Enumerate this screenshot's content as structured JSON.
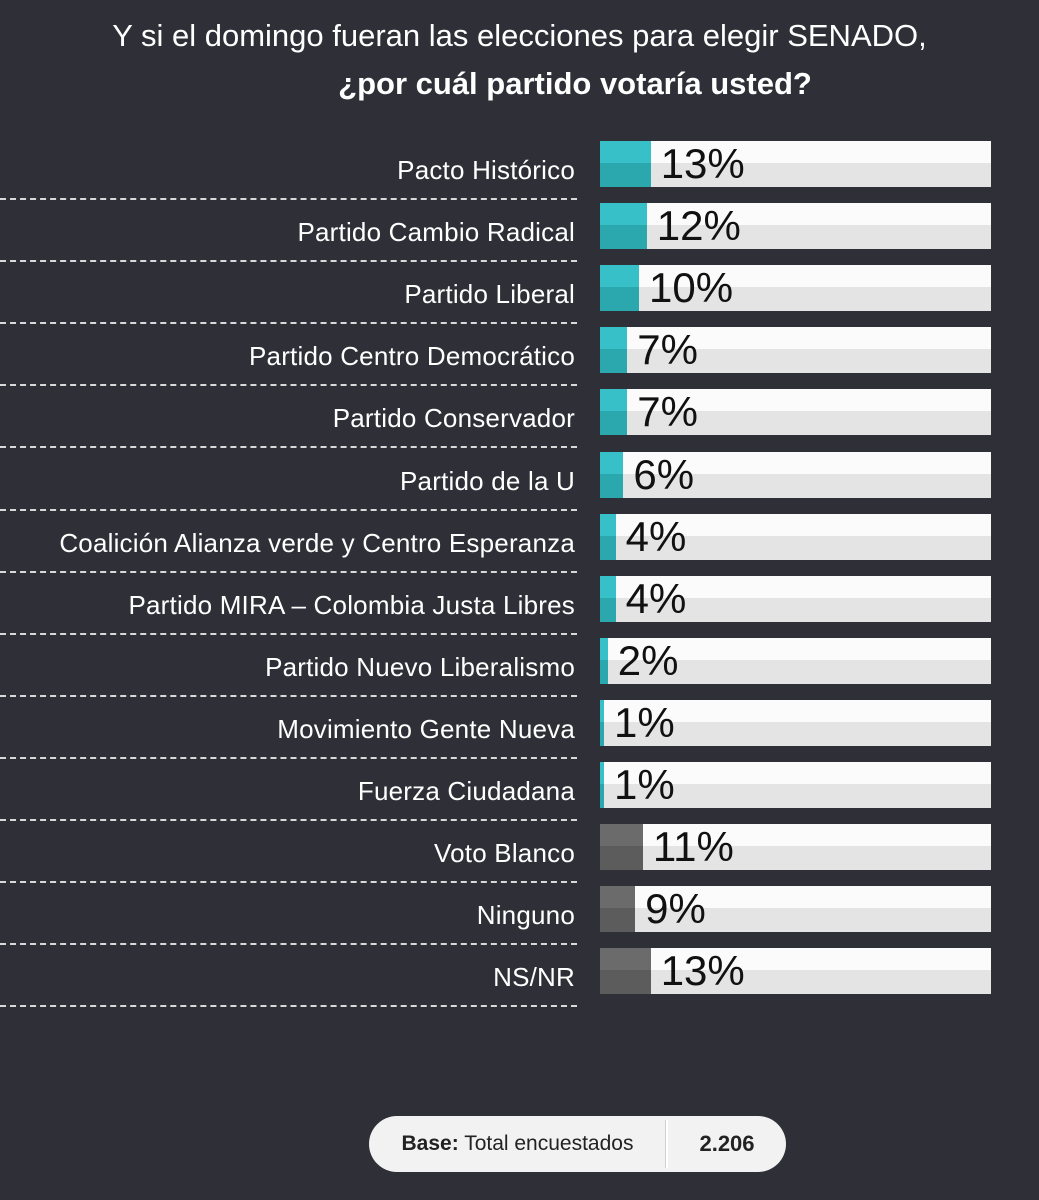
{
  "title": {
    "line1": "Y si el domingo fueran las elecciones para elegir SENADO,",
    "line2": "¿por cuál  partido votaría usted?"
  },
  "colors": {
    "background": "#2f3037",
    "party_bar": "#37c0c7",
    "other_bar": "#6b6b6b",
    "track": "#fbfbfb"
  },
  "chart_data": {
    "type": "bar",
    "orientation": "horizontal",
    "title": "Y si el domingo fueran las elecciones para elegir SENADO, ¿por cuál  partido votaría usted?",
    "unit": "%",
    "xlim": [
      0,
      100
    ],
    "categories": [
      "Pacto Histórico",
      "Partido Cambio Radical",
      "Partido Liberal",
      "Partido Centro Democrático",
      "Partido Conservador",
      "Partido de la U",
      "Coalición Alianza verde y Centro Esperanza",
      "Partido MIRA – Colombia Justa Libres",
      "Partido Nuevo Liberalismo",
      "Movimiento Gente Nueva",
      "Fuerza Ciudadana",
      "Voto Blanco",
      "Ninguno",
      "NS/NR"
    ],
    "values": [
      13,
      12,
      10,
      7,
      7,
      6,
      4,
      4,
      2,
      1,
      1,
      11,
      9,
      13
    ],
    "value_labels": [
      "13%",
      "12%",
      "10%",
      "7%",
      "7%",
      "6%",
      "4%",
      "4%",
      "2%",
      "1%",
      "1%",
      "11%",
      "9%",
      "13%"
    ],
    "bar_group": [
      "party",
      "party",
      "party",
      "party",
      "party",
      "party",
      "party",
      "party",
      "party",
      "party",
      "party",
      "other",
      "other",
      "other"
    ]
  },
  "footer": {
    "base_label": "Base:",
    "base_text": "Total encuestados",
    "base_value": "2.206"
  }
}
